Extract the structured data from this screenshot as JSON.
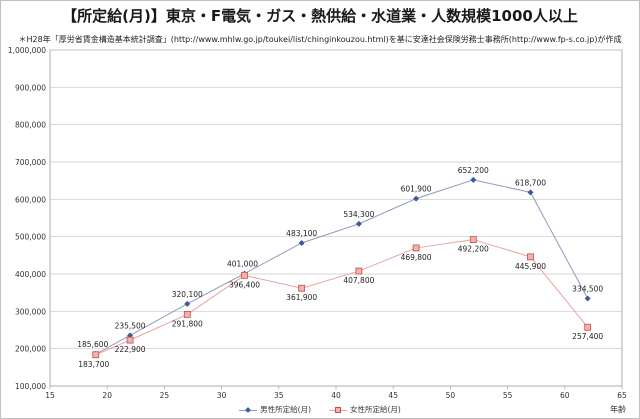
{
  "chart_data": {
    "type": "line",
    "title": "【所定給(月)】東京・F電気・ガス・熱供給・水道業・人数規模1000人以上",
    "subtitle": "＊H28年「厚労省賃金構造基本統計調査」(http://www.mhlw.go.jp/toukei/list/chinginkouzou.html)を基に安達社会保険労務士事務所(http://www.fp-s.co.jp)が作成",
    "xlabel": "年齢",
    "ylabel": "",
    "xlim": [
      15,
      65
    ],
    "ylim": [
      100000,
      1000000
    ],
    "xticks": [
      15,
      20,
      25,
      30,
      35,
      40,
      45,
      50,
      55,
      60,
      65
    ],
    "yticks": [
      100000,
      200000,
      300000,
      400000,
      500000,
      600000,
      700000,
      800000,
      900000,
      1000000
    ],
    "ytick_labels": [
      "100,000",
      "200,000",
      "300,000",
      "400,000",
      "500,000",
      "600,000",
      "700,000",
      "800,000",
      "900,000",
      "1,000,000"
    ],
    "grid": "horizontal",
    "legend_position": "bottom",
    "series": [
      {
        "name": "男性所定給(月)",
        "color": "#5a7ab0",
        "marker": "diamond",
        "x": [
          19,
          22,
          27,
          32,
          37,
          42,
          47,
          52,
          57,
          62
        ],
        "values": [
          185600,
          235500,
          320100,
          401000,
          483100,
          534300,
          601900,
          652200,
          618700,
          334500
        ],
        "labels": [
          "185,600",
          "235,500",
          "320,100",
          "401,000",
          "483,100",
          "534,300",
          "601,900",
          "652,200",
          "618,700",
          "334,500"
        ]
      },
      {
        "name": "女性所定給(月)",
        "color": "#e08a88",
        "marker": "square",
        "x": [
          19,
          22,
          27,
          32,
          37,
          42,
          47,
          52,
          57,
          62
        ],
        "values": [
          183700,
          222900,
          291800,
          396400,
          361900,
          407800,
          469800,
          492200,
          445900,
          257400
        ],
        "labels": [
          "183,700",
          "222,900",
          "291,800",
          "396,400",
          "361,900",
          "407,800",
          "469,800",
          "492,200",
          "445,900",
          "257,400"
        ]
      }
    ]
  }
}
